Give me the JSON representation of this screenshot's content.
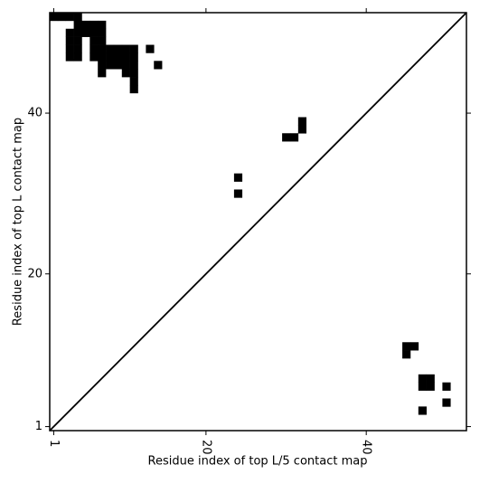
{
  "chart_data": {
    "type": "scatter",
    "marker": "square",
    "xlabel": "Residue index of top L/5 contact map",
    "ylabel": "Residue index of top L contact map",
    "x": [
      1,
      2,
      3,
      4,
      4,
      5,
      6,
      7,
      3,
      4,
      5,
      6,
      7,
      3,
      4,
      6,
      7,
      3,
      4,
      6,
      7,
      8,
      9,
      10,
      11,
      13,
      3,
      4,
      6,
      7,
      8,
      9,
      10,
      11,
      7,
      8,
      9,
      10,
      11,
      14,
      7,
      10,
      11,
      11,
      11,
      32,
      32,
      30,
      31,
      24,
      24,
      45,
      46,
      45,
      47,
      48,
      47,
      48,
      50,
      50,
      47
    ],
    "y": [
      52,
      52,
      52,
      52,
      51,
      51,
      51,
      51,
      50,
      50,
      50,
      50,
      50,
      49,
      49,
      49,
      49,
      48,
      48,
      48,
      48,
      48,
      48,
      48,
      48,
      48,
      47,
      47,
      47,
      47,
      47,
      47,
      47,
      47,
      46,
      46,
      46,
      46,
      46,
      46,
      45,
      45,
      45,
      44,
      43,
      38,
      39,
      37,
      37,
      32,
      30,
      11,
      11,
      10,
      7,
      7,
      6,
      6,
      6,
      4,
      3
    ],
    "color": "#000000",
    "xlim": [
      0.5,
      52.5
    ],
    "ylim": [
      0.5,
      52.5
    ],
    "xticks": [
      1,
      20,
      40
    ],
    "yticks": [
      1,
      20,
      40
    ],
    "diagonal": true
  }
}
